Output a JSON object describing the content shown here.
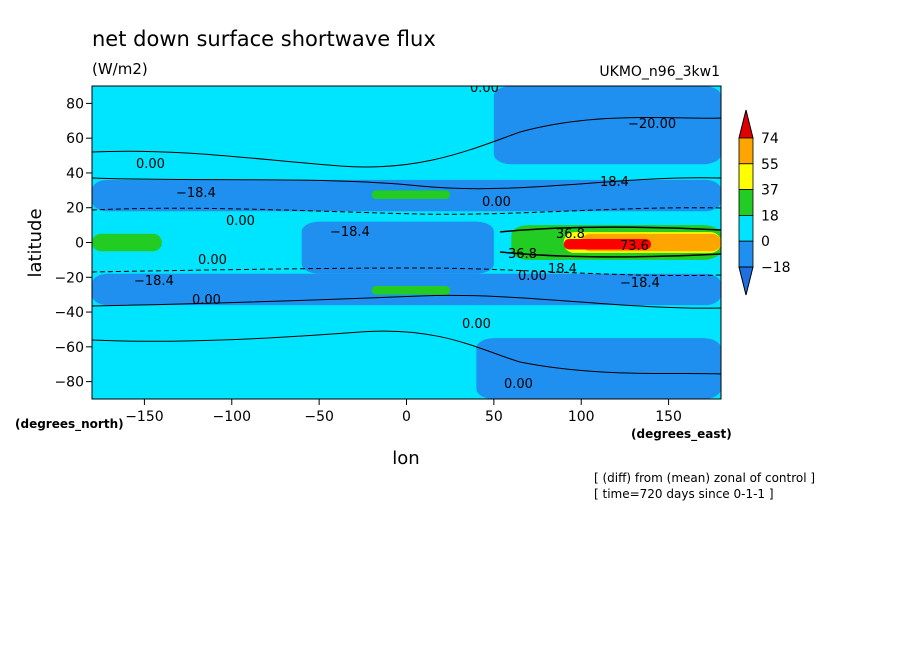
{
  "chart_data": {
    "type": "heatmap",
    "title": "net down surface shortwave flux",
    "units": "(W/m2)",
    "model_label": "UKMO_n96_3kw1",
    "xlabel": "lon",
    "ylabel": "latitude",
    "x_units_label": "(degrees_east)",
    "y_units_label": "(degrees_north)",
    "xlim": [
      -180,
      180
    ],
    "ylim": [
      -90,
      90
    ],
    "x_ticks": [
      -150,
      -100,
      -50,
      0,
      50,
      100,
      150
    ],
    "y_ticks": [
      -80,
      -60,
      -40,
      -20,
      0,
      20,
      40,
      60,
      80
    ],
    "x_tick_labels": [
      "−150",
      "−100",
      "−50",
      "0",
      "50",
      "100",
      "150"
    ],
    "y_tick_labels": [
      "−80",
      "−60",
      "−40",
      "−20",
      "0",
      "20",
      "40",
      "60",
      "80"
    ],
    "colorbar": {
      "levels": [
        -18,
        0,
        18,
        37,
        55,
        74
      ],
      "labels": [
        "−18",
        "0",
        "18",
        "37",
        "55",
        "74"
      ],
      "colors": [
        "#1f8ff0",
        "#00e5ff",
        "#22cc22",
        "#ffff00",
        "#ffa500",
        "#ff0000"
      ],
      "below_color": "#1f6fe0",
      "above_color": "#e00000"
    },
    "contour_labels": [
      "0.00",
      "18.4",
      "36.8",
      "−18.4",
      "73.6",
      "−20.00"
    ],
    "annotations": [
      "[ (diff) from (mean) zonal of control ]",
      "[ time=720 days since 0-1-1 ]"
    ],
    "regions": [
      {
        "level": "-18",
        "lon": [
          -180,
          180
        ],
        "lat": [
          18,
          36
        ]
      },
      {
        "level": "-18",
        "lon": [
          -180,
          180
        ],
        "lat": [
          -36,
          -18
        ]
      },
      {
        "level": "-18",
        "lon": [
          -60,
          50
        ],
        "lat": [
          -18,
          12
        ]
      },
      {
        "level": "-18",
        "lon": [
          40,
          180
        ],
        "lat": [
          -90,
          -55
        ]
      },
      {
        "level": "-18",
        "lon": [
          50,
          180
        ],
        "lat": [
          45,
          90
        ]
      },
      {
        "level": "18",
        "lon": [
          60,
          180
        ],
        "lat": [
          -10,
          10
        ]
      },
      {
        "level": "37",
        "lon": [
          90,
          180
        ],
        "lat": [
          -6,
          6
        ]
      },
      {
        "level": "55",
        "lon": [
          100,
          180
        ],
        "lat": [
          -5,
          5
        ]
      },
      {
        "level": "74",
        "lon": [
          90,
          140
        ],
        "lat": [
          -4,
          2
        ]
      },
      {
        "level": "37",
        "lon": [
          -180,
          -165
        ],
        "lat": [
          -4,
          4
        ]
      },
      {
        "level": "18",
        "lon": [
          -180,
          -140
        ],
        "lat": [
          -5,
          5
        ]
      },
      {
        "level": "18",
        "lon": [
          -20,
          25
        ],
        "lat": [
          25,
          30
        ]
      },
      {
        "level": "18",
        "lon": [
          -20,
          25
        ],
        "lat": [
          -30,
          -25
        ]
      }
    ]
  }
}
